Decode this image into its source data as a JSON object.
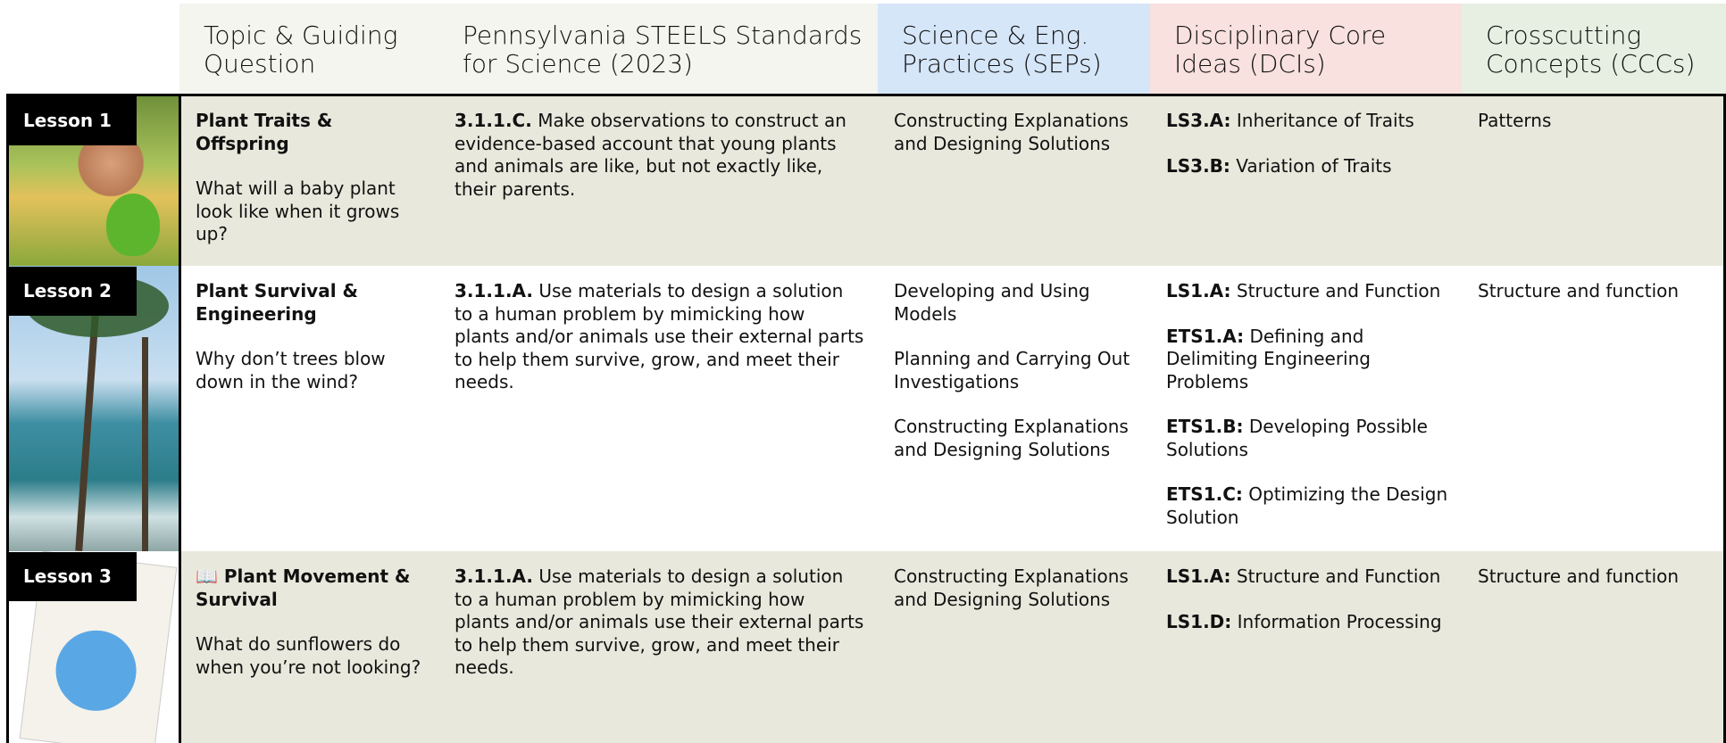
{
  "header": {
    "columns": [
      "Topic & Guiding Question",
      "Pennsylvania STEELS Standards for Science (2023)",
      "Science & Eng. Practices (SEPs)",
      "Disciplinary Core Ideas (DCIs)",
      "Crosscutting Concepts (CCCs)"
    ]
  },
  "rows": [
    {
      "lesson": "Lesson 1",
      "topic": "Plant Traits & Offspring",
      "question": "What will a baby plant look like when it grows up?",
      "standard_code": "3.1.1.C.",
      "standard_text": "Make observations to construct an evidence-based account that young plants and animals are like, but not exactly like, their parents.",
      "seps": [
        "Constructing Explanations and Designing Solutions"
      ],
      "dcis": [
        {
          "code": "LS3.A:",
          "text": "Inheritance of Traits"
        },
        {
          "code": "LS3.B:",
          "text": "Variation of Traits"
        }
      ],
      "cccs": [
        "Patterns"
      ]
    },
    {
      "lesson": "Lesson 2",
      "topic": "Plant Survival & Engineering",
      "question": "Why don’t trees blow down in the wind?",
      "standard_code": "3.1.1.A.",
      "standard_text": "Use materials to design a solution to a human problem by mimicking how plants and/or animals use their external parts to help them survive, grow, and meet their needs.",
      "seps": [
        "Developing and Using Models",
        "Planning and Carrying Out Investigations",
        "Constructing Explanations and Designing Solutions"
      ],
      "dcis": [
        {
          "code": "LS1.A:",
          "text": "Structure and Function"
        },
        {
          "code": "ETS1.A:",
          "text": "Defining and Delimiting Engineering Problems"
        },
        {
          "code": "ETS1.B:",
          "text": "Developing Possible Solutions"
        },
        {
          "code": "ETS1.C:",
          "text": "Optimizing the Design Solution"
        }
      ],
      "cccs": [
        "Structure and function"
      ]
    },
    {
      "lesson": "Lesson 3",
      "topic": "📖 Plant Movement & Survival",
      "question": "What do sunflowers do when you’re not looking?",
      "standard_code": "3.1.1.A.",
      "standard_text": "Use materials to design a solution to a human problem by mimicking how plants and/or animals use their external parts to help them survive, grow, and meet their needs.",
      "seps": [
        "Constructing Explanations and Designing Solutions"
      ],
      "dcis": [
        {
          "code": "LS1.A:",
          "text": "Structure and Function"
        },
        {
          "code": "LS1.D:",
          "text": "Information Processing"
        }
      ],
      "cccs": [
        "Structure and function"
      ]
    }
  ]
}
